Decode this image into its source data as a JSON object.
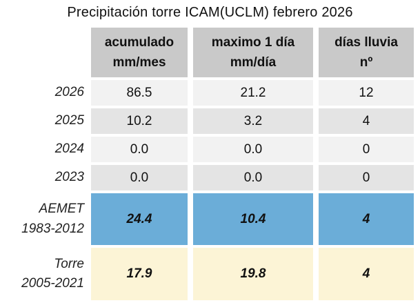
{
  "title": "Precipitación torre ICAM(UCLM) febrero 2026",
  "colors": {
    "header_bg": "#c9c9c9",
    "row_light_bg": "#f2f2f2",
    "row_dark_bg": "#e4e4e4",
    "aemet_row_bg": "#6badd8",
    "torre_row_bg": "#fcf4d6",
    "text": "#111111"
  },
  "chart_data": {
    "type": "table",
    "title": "Precipitación torre ICAM(UCLM) febrero 2026",
    "columns": [
      {
        "label": "acumulado",
        "unit": "mm/mes"
      },
      {
        "label": "maximo 1 día",
        "unit": "mm/día"
      },
      {
        "label": "días lluvia",
        "unit": "nº"
      }
    ],
    "rows": [
      {
        "label": "2026",
        "values": [
          "86.5",
          "21.2",
          "12"
        ]
      },
      {
        "label": "2025",
        "values": [
          "10.2",
          "3.2",
          "4"
        ]
      },
      {
        "label": "2024",
        "values": [
          "0.0",
          "0.0",
          "0"
        ]
      },
      {
        "label": "2023",
        "values": [
          "0.0",
          "0.0",
          "0"
        ]
      },
      {
        "label": "AEMET",
        "label2": "1983-2012",
        "values": [
          "24.4",
          "10.4",
          "4"
        ]
      },
      {
        "label": "Torre",
        "label2": "2005-2021",
        "values": [
          "17.9",
          "19.8",
          "4"
        ]
      }
    ]
  }
}
